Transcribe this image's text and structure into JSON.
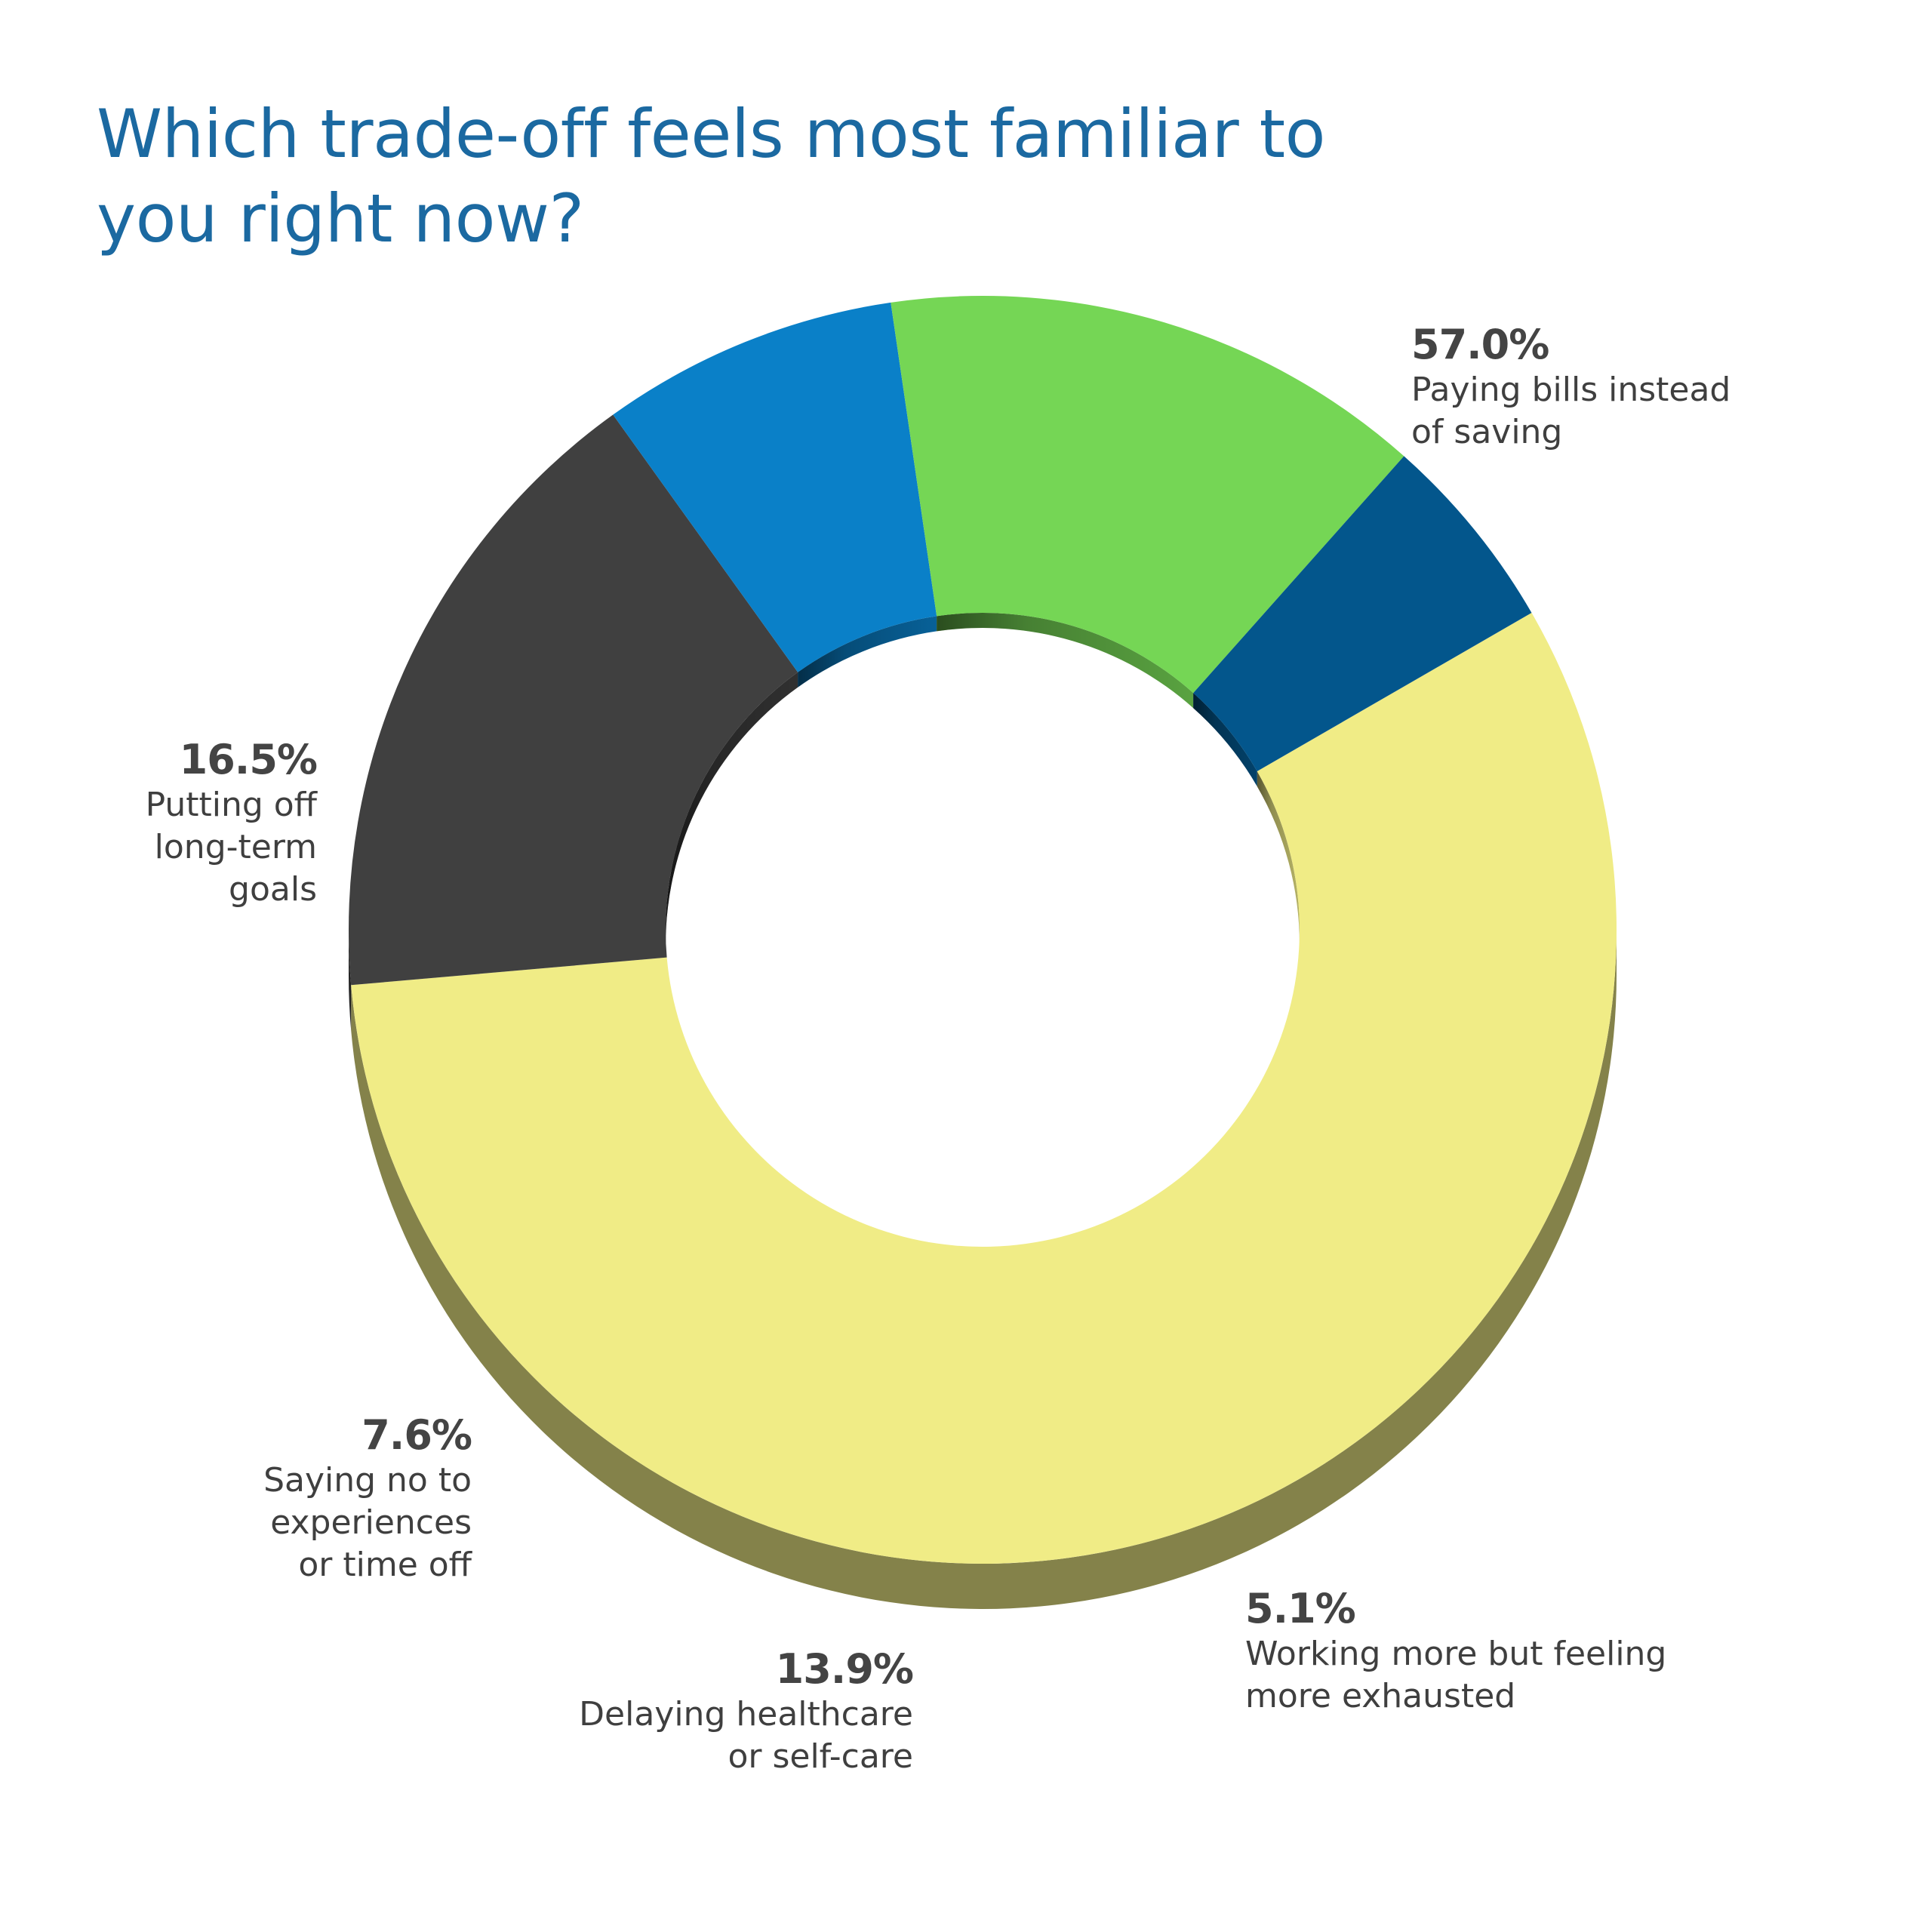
{
  "title": {
    "line1": "Which trade-off feels most familiar to",
    "line2": "you right now?"
  },
  "chart_data": {
    "type": "pie",
    "style": "3d-donut",
    "title": "Which trade-off feels most familiar to you right now?",
    "unit": "%",
    "slices": [
      {
        "label": "Paying bills instead of saving",
        "value": 57.0,
        "value_label": "57.0%",
        "color": "#F0EC86"
      },
      {
        "label": "Putting off long-term goals",
        "value": 16.5,
        "value_label": "16.5%",
        "color": "#404040"
      },
      {
        "label": "Saying no to experiences or time off",
        "value": 7.6,
        "value_label": "7.6%",
        "color": "#0A80C8"
      },
      {
        "label": "Delaying healthcare or self-care",
        "value": 13.9,
        "value_label": "13.9%",
        "color": "#75D655"
      },
      {
        "label": "Working more but feeling more exhausted",
        "value": 5.1,
        "value_label": "5.1%",
        "color": "#03568C"
      }
    ]
  },
  "labels": [
    {
      "pct": "57.0%",
      "desc": "Paying bills instead\nof saving"
    },
    {
      "pct": "16.5%",
      "desc": "Putting off\nlong-term\ngoals"
    },
    {
      "pct": "7.6%",
      "desc": "Saying no to\nexperiences\nor time off"
    },
    {
      "pct": "13.9%",
      "desc": "Delaying healthcare\nor self-care"
    },
    {
      "pct": "5.1%",
      "desc": "Working more but feeling\nmore exhausted"
    }
  ]
}
